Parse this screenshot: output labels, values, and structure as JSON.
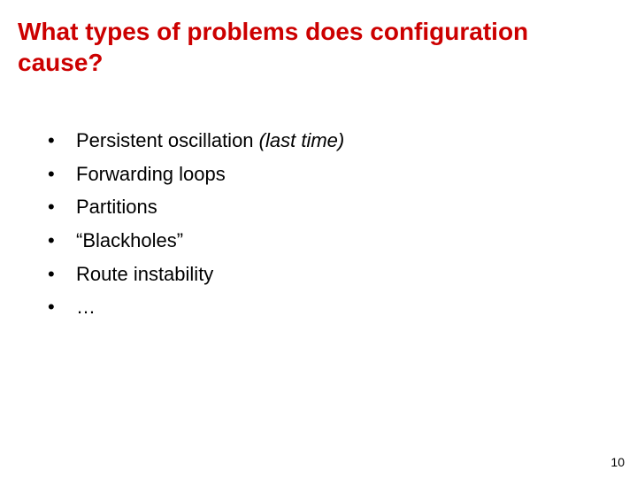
{
  "title": "What types of problems does configuration cause?",
  "title_color": "#cc0000",
  "title_fontsize": 28,
  "body_fontsize": 22,
  "body_color": "#000000",
  "background_color": "#ffffff",
  "bullets": [
    {
      "prefix": "Persistent oscillation ",
      "italic": "(last time)"
    },
    {
      "prefix": "Forwarding loops",
      "italic": ""
    },
    {
      "prefix": "Partitions",
      "italic": ""
    },
    {
      "prefix": "“Blackholes”",
      "italic": ""
    },
    {
      "prefix": "Route instability",
      "italic": ""
    },
    {
      "prefix": "…",
      "italic": ""
    }
  ],
  "page_number": "10"
}
